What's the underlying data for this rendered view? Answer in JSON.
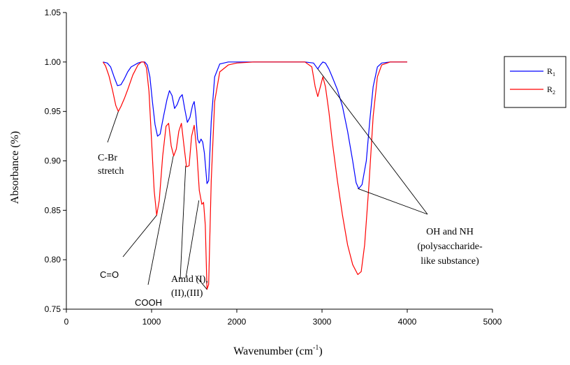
{
  "chart_data": {
    "type": "line",
    "title": "",
    "xlabel": "Wavenumber (cm",
    "xlabel_sup": "-1",
    "xlabel_end": ")",
    "ylabel": "Absorbance (%)",
    "xlim": [
      0,
      5000
    ],
    "ylim": [
      0.75,
      1.05
    ],
    "xticks": [
      0,
      1000,
      2000,
      3000,
      4000,
      5000
    ],
    "yticks": [
      0.75,
      0.8,
      0.85,
      0.9,
      0.95,
      1.0,
      1.05
    ],
    "xtick_labels": [
      "0",
      "1000",
      "2000",
      "3000",
      "4000",
      "5000"
    ],
    "ytick_labels": [
      "0.75",
      "0.80",
      "0.85",
      "0.90",
      "0.95",
      "1.00",
      "1.05"
    ],
    "legend_position": "right",
    "series": [
      {
        "name": "R1",
        "name_base": "R",
        "name_sub": "1",
        "color": "#0000ff",
        "points": [
          [
            430,
            1.0
          ],
          [
            480,
            0.999
          ],
          [
            520,
            0.995
          ],
          [
            560,
            0.985
          ],
          [
            600,
            0.976
          ],
          [
            640,
            0.977
          ],
          [
            680,
            0.983
          ],
          [
            720,
            0.99
          ],
          [
            760,
            0.995
          ],
          [
            800,
            0.997
          ],
          [
            840,
            0.999
          ],
          [
            880,
            1.0
          ],
          [
            920,
            1.0
          ],
          [
            950,
            0.997
          ],
          [
            980,
            0.985
          ],
          [
            1010,
            0.96
          ],
          [
            1040,
            0.937
          ],
          [
            1070,
            0.925
          ],
          [
            1100,
            0.927
          ],
          [
            1140,
            0.945
          ],
          [
            1180,
            0.962
          ],
          [
            1210,
            0.971
          ],
          [
            1240,
            0.966
          ],
          [
            1270,
            0.953
          ],
          [
            1300,
            0.957
          ],
          [
            1330,
            0.964
          ],
          [
            1360,
            0.967
          ],
          [
            1390,
            0.952
          ],
          [
            1420,
            0.939
          ],
          [
            1450,
            0.944
          ],
          [
            1480,
            0.956
          ],
          [
            1500,
            0.96
          ],
          [
            1520,
            0.946
          ],
          [
            1540,
            0.922
          ],
          [
            1560,
            0.918
          ],
          [
            1580,
            0.922
          ],
          [
            1600,
            0.919
          ],
          [
            1620,
            0.908
          ],
          [
            1650,
            0.877
          ],
          [
            1670,
            0.88
          ],
          [
            1700,
            0.94
          ],
          [
            1740,
            0.985
          ],
          [
            1800,
            0.998
          ],
          [
            1900,
            1.0
          ],
          [
            2000,
            1.0
          ],
          [
            2200,
            1.0
          ],
          [
            2400,
            1.0
          ],
          [
            2600,
            1.0
          ],
          [
            2800,
            1.0
          ],
          [
            2900,
            0.999
          ],
          [
            2950,
            0.993
          ],
          [
            2980,
            0.997
          ],
          [
            3010,
            1.0
          ],
          [
            3040,
            0.999
          ],
          [
            3080,
            0.993
          ],
          [
            3120,
            0.985
          ],
          [
            3180,
            0.972
          ],
          [
            3240,
            0.955
          ],
          [
            3300,
            0.93
          ],
          [
            3360,
            0.9
          ],
          [
            3400,
            0.878
          ],
          [
            3430,
            0.872
          ],
          [
            3470,
            0.876
          ],
          [
            3520,
            0.9
          ],
          [
            3560,
            0.94
          ],
          [
            3600,
            0.975
          ],
          [
            3650,
            0.995
          ],
          [
            3700,
            0.999
          ],
          [
            3800,
            1.0
          ],
          [
            3900,
            1.0
          ],
          [
            4000,
            1.0
          ]
        ]
      },
      {
        "name": "R2",
        "name_base": "R",
        "name_sub": "2",
        "color": "#ff0000",
        "points": [
          [
            430,
            1.0
          ],
          [
            460,
            0.996
          ],
          [
            500,
            0.986
          ],
          [
            540,
            0.972
          ],
          [
            580,
            0.956
          ],
          [
            610,
            0.95
          ],
          [
            640,
            0.955
          ],
          [
            680,
            0.963
          ],
          [
            720,
            0.972
          ],
          [
            780,
            0.987
          ],
          [
            840,
            0.997
          ],
          [
            880,
            1.0
          ],
          [
            910,
            1.0
          ],
          [
            940,
            0.994
          ],
          [
            970,
            0.97
          ],
          [
            1000,
            0.92
          ],
          [
            1030,
            0.87
          ],
          [
            1060,
            0.845
          ],
          [
            1090,
            0.86
          ],
          [
            1130,
            0.905
          ],
          [
            1170,
            0.935
          ],
          [
            1200,
            0.938
          ],
          [
            1230,
            0.915
          ],
          [
            1260,
            0.905
          ],
          [
            1290,
            0.912
          ],
          [
            1320,
            0.93
          ],
          [
            1350,
            0.938
          ],
          [
            1380,
            0.915
          ],
          [
            1410,
            0.894
          ],
          [
            1440,
            0.895
          ],
          [
            1470,
            0.925
          ],
          [
            1500,
            0.936
          ],
          [
            1530,
            0.91
          ],
          [
            1560,
            0.87
          ],
          [
            1590,
            0.856
          ],
          [
            1610,
            0.858
          ],
          [
            1630,
            0.835
          ],
          [
            1650,
            0.77
          ],
          [
            1670,
            0.775
          ],
          [
            1700,
            0.88
          ],
          [
            1740,
            0.96
          ],
          [
            1800,
            0.99
          ],
          [
            1900,
            0.997
          ],
          [
            2000,
            0.999
          ],
          [
            2200,
            1.0
          ],
          [
            2400,
            1.0
          ],
          [
            2600,
            1.0
          ],
          [
            2800,
            1.0
          ],
          [
            2880,
            0.995
          ],
          [
            2920,
            0.975
          ],
          [
            2950,
            0.965
          ],
          [
            2980,
            0.975
          ],
          [
            3010,
            0.985
          ],
          [
            3040,
            0.975
          ],
          [
            3080,
            0.95
          ],
          [
            3120,
            0.92
          ],
          [
            3180,
            0.88
          ],
          [
            3240,
            0.845
          ],
          [
            3300,
            0.815
          ],
          [
            3360,
            0.795
          ],
          [
            3420,
            0.785
          ],
          [
            3460,
            0.788
          ],
          [
            3500,
            0.815
          ],
          [
            3550,
            0.875
          ],
          [
            3600,
            0.945
          ],
          [
            3650,
            0.985
          ],
          [
            3700,
            0.997
          ],
          [
            3800,
            1.0
          ],
          [
            3900,
            1.0
          ],
          [
            4000,
            1.0
          ]
        ]
      }
    ],
    "annotations": [
      {
        "id": "c-br",
        "lines": [
          "C-Br",
          "stretch"
        ],
        "x": 610,
        "y": 0.95
      },
      {
        "id": "c-o",
        "lines": [
          "C=O"
        ],
        "x": 1060,
        "y": 0.845
      },
      {
        "id": "cooh",
        "lines": [
          "COOH"
        ],
        "x": 1260,
        "y": 0.905
      },
      {
        "id": "amid",
        "lines": [
          "Amid (I),",
          "(II),(III)"
        ],
        "x": 1600,
        "y": 0.85
      },
      {
        "id": "oh-nh",
        "lines": [
          "OH and NH",
          "(polysaccharide-",
          "like substance)"
        ],
        "x": 3430,
        "y": 0.872
      }
    ]
  }
}
